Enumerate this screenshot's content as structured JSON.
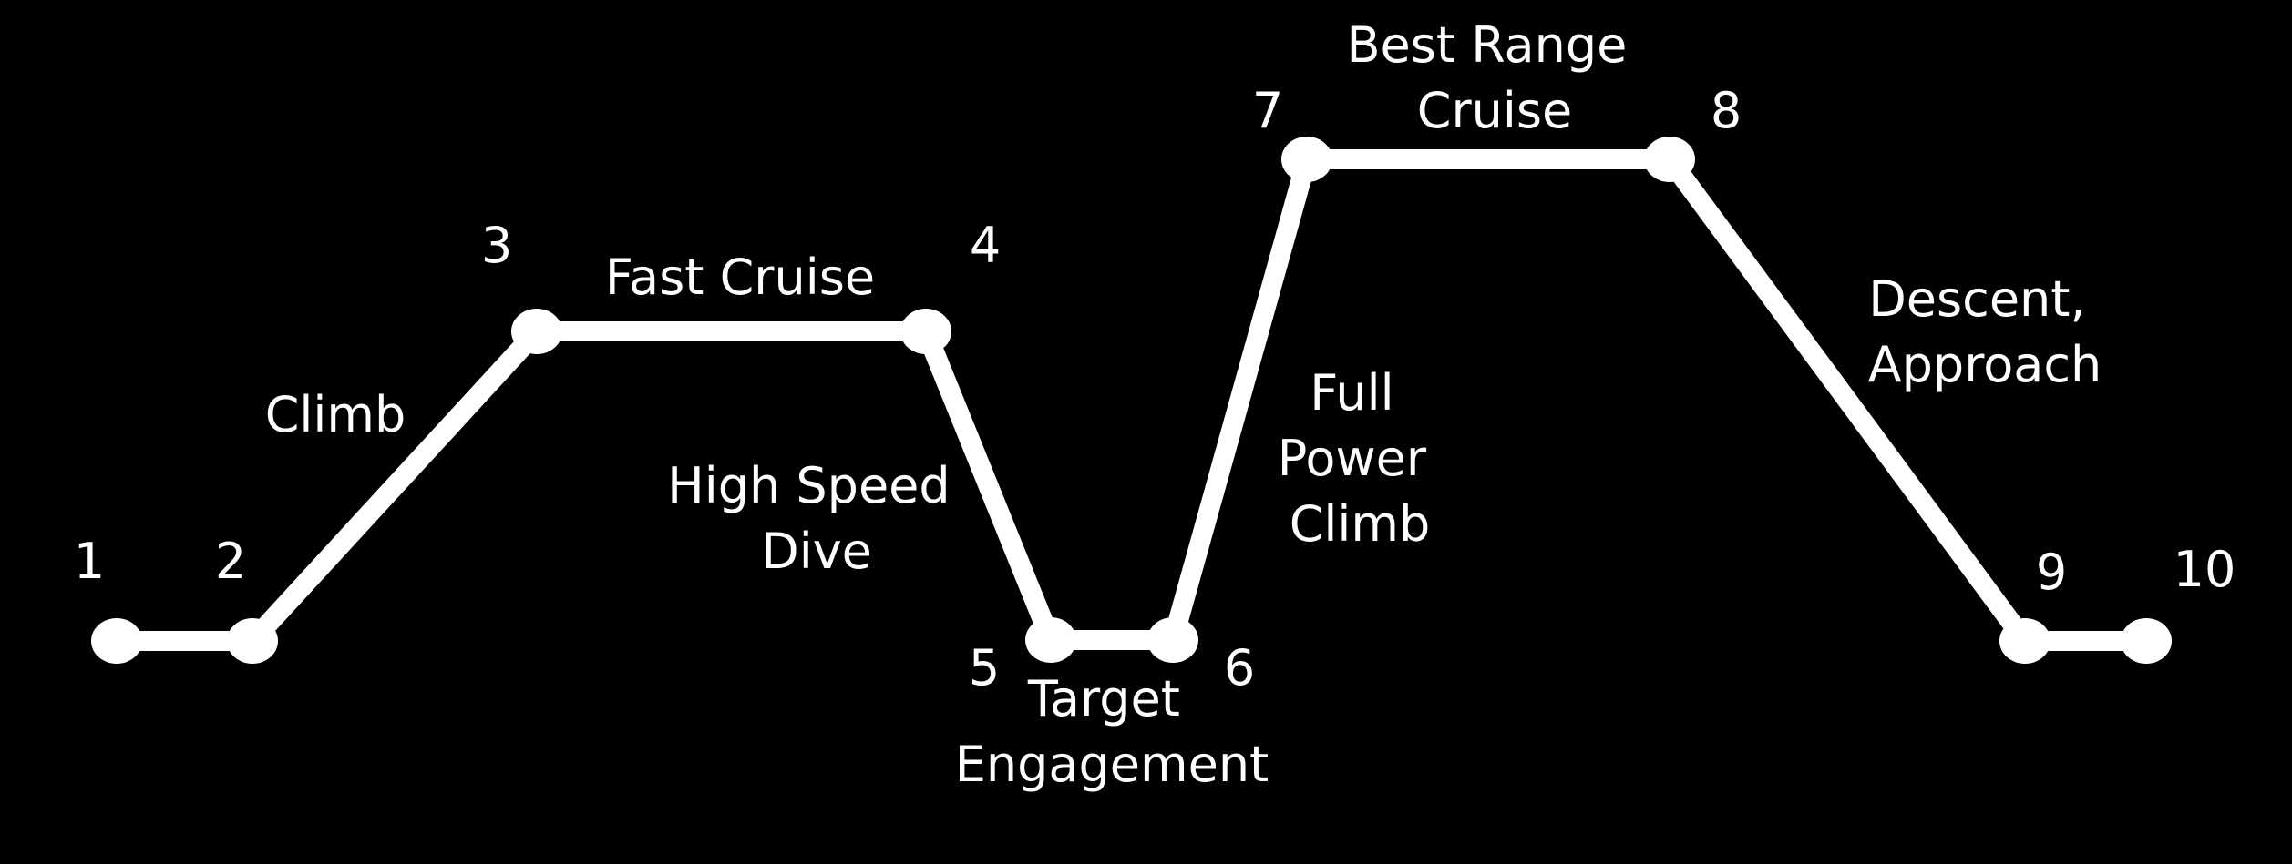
{
  "colors": {
    "background": "#000000",
    "foreground": "#ffffff"
  },
  "mission_profile": {
    "points": [
      {
        "label": "1"
      },
      {
        "label": "2"
      },
      {
        "label": "3"
      },
      {
        "label": "4"
      },
      {
        "label": "5"
      },
      {
        "label": "6"
      },
      {
        "label": "7"
      },
      {
        "label": "8"
      },
      {
        "label": "9"
      },
      {
        "label": "10"
      }
    ],
    "segments": {
      "climb": [
        "Climb"
      ],
      "fast_cruise": [
        "Fast Cruise"
      ],
      "high_speed_dive": [
        "High Speed",
        "Dive"
      ],
      "target_engagement": [
        "Target",
        "Engagement"
      ],
      "full_power_climb": [
        "Full",
        "Power",
        "Climb"
      ],
      "best_range_cruise": [
        "Best Range",
        "Cruise"
      ],
      "descent_approach": [
        "Descent,",
        "Approach"
      ]
    }
  }
}
